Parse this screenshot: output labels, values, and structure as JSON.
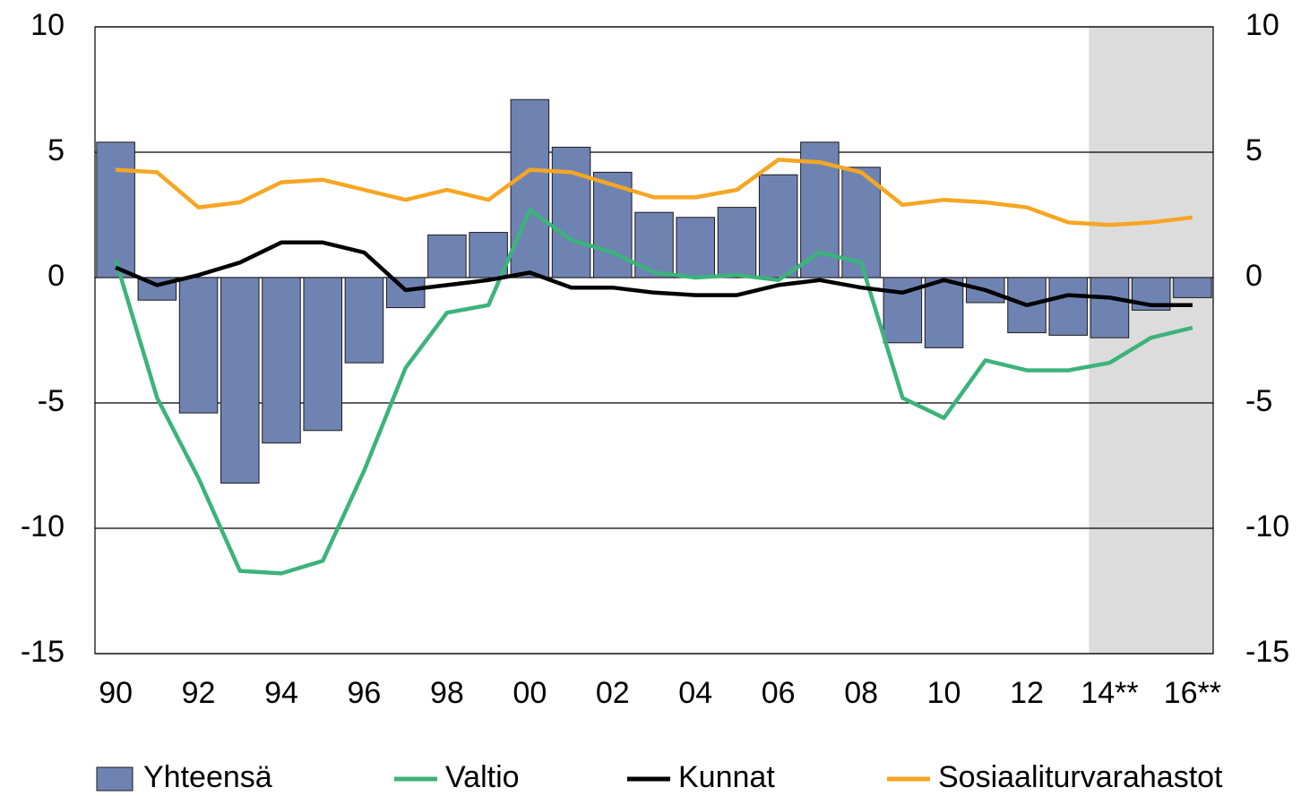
{
  "chart_data": {
    "type": "combo",
    "categories": [
      "90",
      null,
      "92",
      null,
      "94",
      null,
      "96",
      null,
      "98",
      null,
      "00",
      null,
      "02",
      null,
      "04",
      null,
      "06",
      null,
      "08",
      null,
      "10",
      null,
      "12",
      null,
      "14**",
      null,
      "16**"
    ],
    "series": [
      {
        "name": "Yhteensä",
        "type": "bar",
        "color": "#6f83b3",
        "values": [
          5.4,
          -0.9,
          -5.4,
          -8.2,
          -6.6,
          -6.1,
          -3.4,
          -1.2,
          1.7,
          1.8,
          7.1,
          5.2,
          4.2,
          2.6,
          2.4,
          2.8,
          4.1,
          5.4,
          4.4,
          -2.6,
          -2.8,
          -1.0,
          -2.2,
          -2.3,
          -2.4,
          -1.3,
          -0.8
        ]
      },
      {
        "name": "Valtio",
        "type": "line",
        "color": "#3cb37a",
        "values": [
          0.7,
          -4.8,
          -8.0,
          -11.7,
          -11.8,
          -11.3,
          -7.7,
          -3.6,
          -1.4,
          -1.1,
          2.7,
          1.5,
          1.0,
          0.2,
          0.0,
          0.1,
          -0.1,
          1.0,
          0.6,
          -4.8,
          -5.6,
          -3.3,
          -3.7,
          -3.7,
          -3.4,
          -2.4,
          -2.0
        ]
      },
      {
        "name": "Kunnat",
        "type": "line",
        "color": "#000000",
        "values": [
          0.4,
          -0.3,
          0.1,
          0.6,
          1.4,
          1.4,
          1.0,
          -0.5,
          -0.3,
          -0.1,
          0.2,
          -0.4,
          -0.4,
          -0.6,
          -0.7,
          -0.7,
          -0.3,
          -0.1,
          -0.4,
          -0.6,
          -0.1,
          -0.5,
          -1.1,
          -0.7,
          -0.8,
          -1.1,
          -1.1
        ]
      },
      {
        "name": "Sosiaaliturvarahastot",
        "type": "line",
        "color": "#f6a623",
        "values": [
          4.3,
          4.2,
          2.8,
          3.0,
          3.8,
          3.9,
          3.5,
          3.1,
          3.5,
          3.1,
          4.3,
          4.2,
          3.7,
          3.2,
          3.2,
          3.5,
          4.7,
          4.6,
          4.2,
          2.9,
          3.1,
          3.0,
          2.8,
          2.2,
          2.1,
          2.2,
          2.4
        ]
      }
    ],
    "ylim": [
      -15,
      10
    ],
    "yticks": [
      -15,
      -10,
      -5,
      0,
      5,
      10
    ],
    "y2lim": [
      -15,
      10
    ],
    "y2ticks": [
      -15,
      -10,
      -5,
      0,
      5,
      10
    ],
    "grid": true,
    "shade_start_index": 24,
    "shade_color": "#dcdcdc",
    "legend": "bottom"
  }
}
